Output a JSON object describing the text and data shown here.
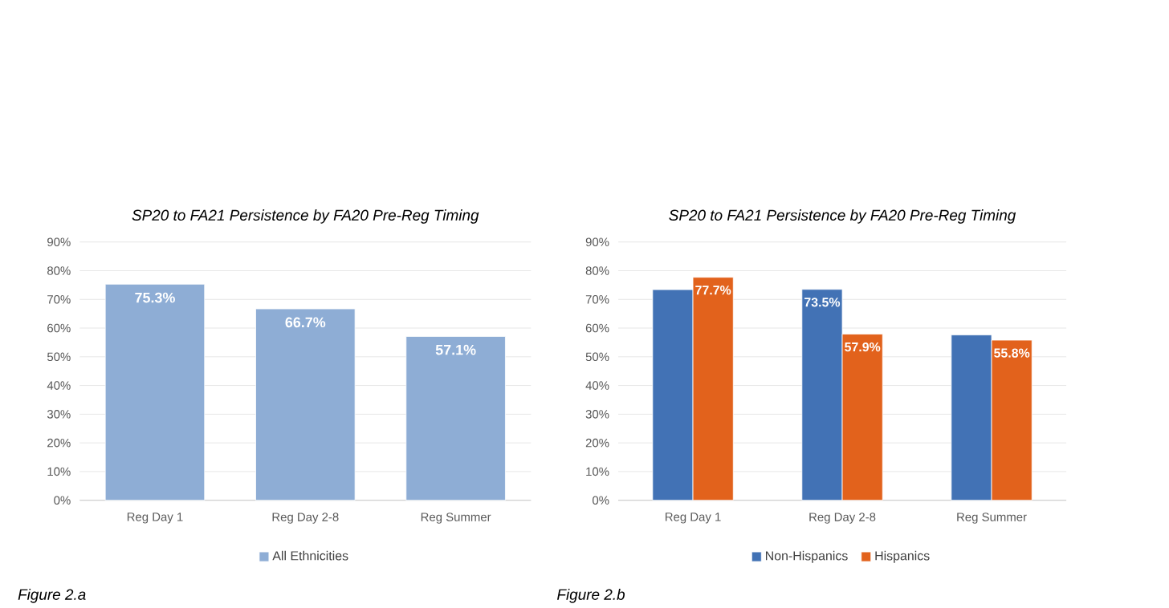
{
  "chart_data": [
    {
      "type": "bar",
      "title": "SP20 to FA21  Persistence by FA20 Pre-Reg Timing",
      "categories": [
        "Reg Day 1",
        "Reg Day 2-8",
        "Reg Summer"
      ],
      "series": [
        {
          "name": "All Ethnicities",
          "color": "#8eadd5",
          "values": [
            75.3,
            66.7,
            57.1
          ],
          "value_labels": [
            "75.3%",
            "66.7%",
            "57.1%"
          ]
        }
      ],
      "ylim": [
        0,
        90
      ],
      "yticks": [
        {
          "value": 0,
          "label": "0%"
        },
        {
          "value": 10,
          "label": "10%"
        },
        {
          "value": 20,
          "label": "20%"
        },
        {
          "value": 30,
          "label": "30%"
        },
        {
          "value": 40,
          "label": "40%"
        },
        {
          "value": 50,
          "label": "50%"
        },
        {
          "value": 60,
          "label": "60%"
        },
        {
          "value": 70,
          "label": "70%"
        },
        {
          "value": 80,
          "label": "80%"
        },
        {
          "value": 90,
          "label": "90%"
        }
      ],
      "grid": "y",
      "legend": "bottom",
      "annotations": [
        "Figure 2.a"
      ]
    },
    {
      "type": "bar",
      "title": "SP20 to FA21  Persistence by FA20 Pre-Reg Timing",
      "categories": [
        "Reg Day 1",
        "Reg Day 2-8",
        "Reg Summer"
      ],
      "series": [
        {
          "name": "Non-Hispanics",
          "color": "#4272b5",
          "values": [
            73.4,
            73.5,
            57.6
          ],
          "value_labels": [
            null,
            "73.5%",
            null
          ]
        },
        {
          "name": "Hispanics",
          "color": "#e2621c",
          "values": [
            77.7,
            57.9,
            55.8
          ],
          "value_labels": [
            "77.7%",
            "57.9%",
            "55.8%"
          ]
        }
      ],
      "ylim": [
        0,
        90
      ],
      "yticks": [
        {
          "value": 0,
          "label": "0%"
        },
        {
          "value": 10,
          "label": "10%"
        },
        {
          "value": 20,
          "label": "20%"
        },
        {
          "value": 30,
          "label": "30%"
        },
        {
          "value": 40,
          "label": "40%"
        },
        {
          "value": 50,
          "label": "50%"
        },
        {
          "value": 60,
          "label": "60%"
        },
        {
          "value": 70,
          "label": "70%"
        },
        {
          "value": 80,
          "label": "80%"
        },
        {
          "value": 90,
          "label": "90%"
        }
      ],
      "grid": "y",
      "legend": "bottom",
      "annotations": [
        "Figure 2.b"
      ]
    }
  ]
}
